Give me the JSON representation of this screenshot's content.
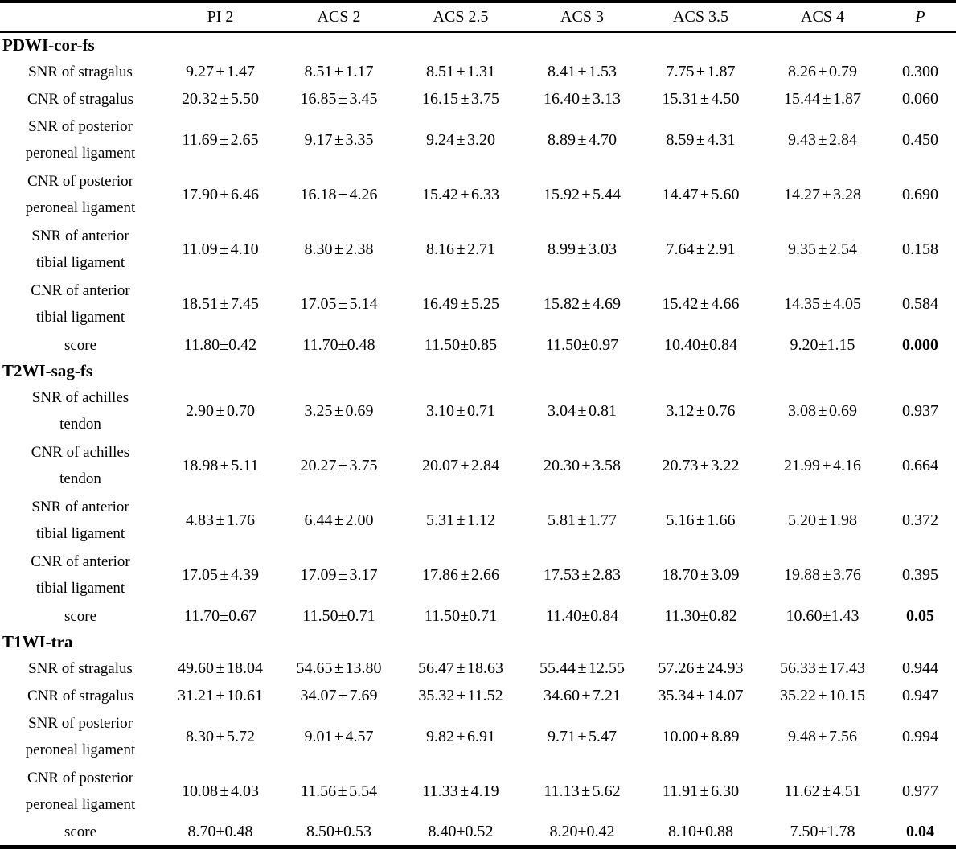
{
  "table": {
    "type": "table",
    "columns": [
      "",
      "PI 2",
      "ACS 2",
      "ACS 2.5",
      "ACS 3",
      "ACS 3.5",
      "ACS 4",
      "P"
    ],
    "sections": [
      {
        "title": "PDWI-cor-fs",
        "rows": [
          {
            "label": [
              "SNR of stragalus"
            ],
            "values": [
              "9.27±1.47",
              "8.51±1.17",
              "8.51±1.31",
              "8.41±1.53",
              "7.75±1.87",
              "8.26±0.79"
            ],
            "p": "0.300",
            "bold_p": false,
            "score": false
          },
          {
            "label": [
              "CNR of stragalus"
            ],
            "values": [
              "20.32±5.50",
              "16.85±3.45",
              "16.15±3.75",
              "16.40±3.13",
              "15.31±4.50",
              "15.44±1.87"
            ],
            "p": "0.060",
            "bold_p": false,
            "score": false
          },
          {
            "label": [
              "SNR of posterior",
              "peroneal ligament"
            ],
            "values": [
              "11.69±2.65",
              "9.17±3.35",
              "9.24±3.20",
              "8.89±4.70",
              "8.59±4.31",
              "9.43±2.84"
            ],
            "p": "0.450",
            "bold_p": false,
            "score": false
          },
          {
            "label": [
              "CNR of posterior",
              "peroneal ligament"
            ],
            "values": [
              "17.90±6.46",
              "16.18±4.26",
              "15.42±6.33",
              "15.92±5.44",
              "14.47±5.60",
              "14.27±3.28"
            ],
            "p": "0.690",
            "bold_p": false,
            "score": false
          },
          {
            "label": [
              "SNR of anterior",
              "tibial ligament"
            ],
            "values": [
              "11.09±4.10",
              "8.30±2.38",
              "8.16±2.71",
              "8.99±3.03",
              "7.64±2.91",
              "9.35±2.54"
            ],
            "p": "0.158",
            "bold_p": false,
            "score": false
          },
          {
            "label": [
              "CNR of anterior",
              "tibial ligament"
            ],
            "values": [
              "18.51±7.45",
              "17.05±5.14",
              "16.49±5.25",
              "15.82±4.69",
              "15.42±4.66",
              "14.35±4.05"
            ],
            "p": "0.584",
            "bold_p": false,
            "score": false
          },
          {
            "label": [
              "score"
            ],
            "values": [
              "11.80±0.42",
              "11.70±0.48",
              "11.50±0.85",
              "11.50±0.97",
              "10.40±0.84",
              "9.20±1.15"
            ],
            "p": "0.000",
            "bold_p": true,
            "score": true
          }
        ]
      },
      {
        "title": "T2WI-sag-fs",
        "rows": [
          {
            "label": [
              "SNR of achilles",
              "tendon"
            ],
            "values": [
              "2.90±0.70",
              "3.25±0.69",
              "3.10±0.71",
              "3.04±0.81",
              "3.12±0.76",
              "3.08±0.69"
            ],
            "p": "0.937",
            "bold_p": false,
            "score": false
          },
          {
            "label": [
              "CNR of achilles",
              "tendon"
            ],
            "values": [
              "18.98±5.11",
              "20.27±3.75",
              "20.07±2.84",
              "20.30±3.58",
              "20.73±3.22",
              "21.99±4.16"
            ],
            "p": "0.664",
            "bold_p": false,
            "score": false
          },
          {
            "label": [
              "SNR of anterior",
              "tibial ligament"
            ],
            "values": [
              "4.83±1.76",
              "6.44±2.00",
              "5.31±1.12",
              "5.81±1.77",
              "5.16±1.66",
              "5.20±1.98"
            ],
            "p": "0.372",
            "bold_p": false,
            "score": false
          },
          {
            "label": [
              "CNR of anterior",
              "tibial ligament"
            ],
            "values": [
              "17.05±4.39",
              "17.09±3.17",
              "17.86±2.66",
              "17.53±2.83",
              "18.70±3.09",
              "19.88±3.76"
            ],
            "p": "0.395",
            "bold_p": false,
            "score": false
          },
          {
            "label": [
              "score"
            ],
            "values": [
              "11.70±0.67",
              "11.50±0.71",
              "11.50±0.71",
              "11.40±0.84",
              "11.30±0.82",
              "10.60±1.43"
            ],
            "p": "0.05",
            "bold_p": true,
            "score": true
          }
        ]
      },
      {
        "title": "T1WI-tra",
        "rows": [
          {
            "label": [
              "SNR of stragalus"
            ],
            "values": [
              "49.60±18.04",
              "54.65±13.80",
              "56.47±18.63",
              "55.44±12.55",
              "57.26±24.93",
              "56.33±17.43"
            ],
            "p": "0.944",
            "bold_p": false,
            "score": false
          },
          {
            "label": [
              "CNR of stragalus"
            ],
            "values": [
              "31.21±10.61",
              "34.07±7.69",
              "35.32±11.52",
              "34.60±7.21",
              "35.34±14.07",
              "35.22±10.15"
            ],
            "p": "0.947",
            "bold_p": false,
            "score": false
          },
          {
            "label": [
              "SNR of posterior",
              "peroneal ligament"
            ],
            "values": [
              "8.30±5.72",
              "9.01±4.57",
              "9.82±6.91",
              "9.71±5.47",
              "10.00±8.89",
              "9.48±7.56"
            ],
            "p": "0.994",
            "bold_p": false,
            "score": false
          },
          {
            "label": [
              "CNR of posterior",
              "peroneal ligament"
            ],
            "values": [
              "10.08±4.03",
              "11.56±5.54",
              "11.33±4.19",
              "11.13±5.62",
              "11.91±6.30",
              "11.62±4.51"
            ],
            "p": "0.977",
            "bold_p": false,
            "score": false
          },
          {
            "label": [
              "score"
            ],
            "values": [
              "8.70±0.48",
              "8.50±0.53",
              "8.40±0.52",
              "8.20±0.42",
              "8.10±0.88",
              "7.50±1.78"
            ],
            "p": "0.04",
            "bold_p": true,
            "score": true
          }
        ]
      }
    ]
  }
}
